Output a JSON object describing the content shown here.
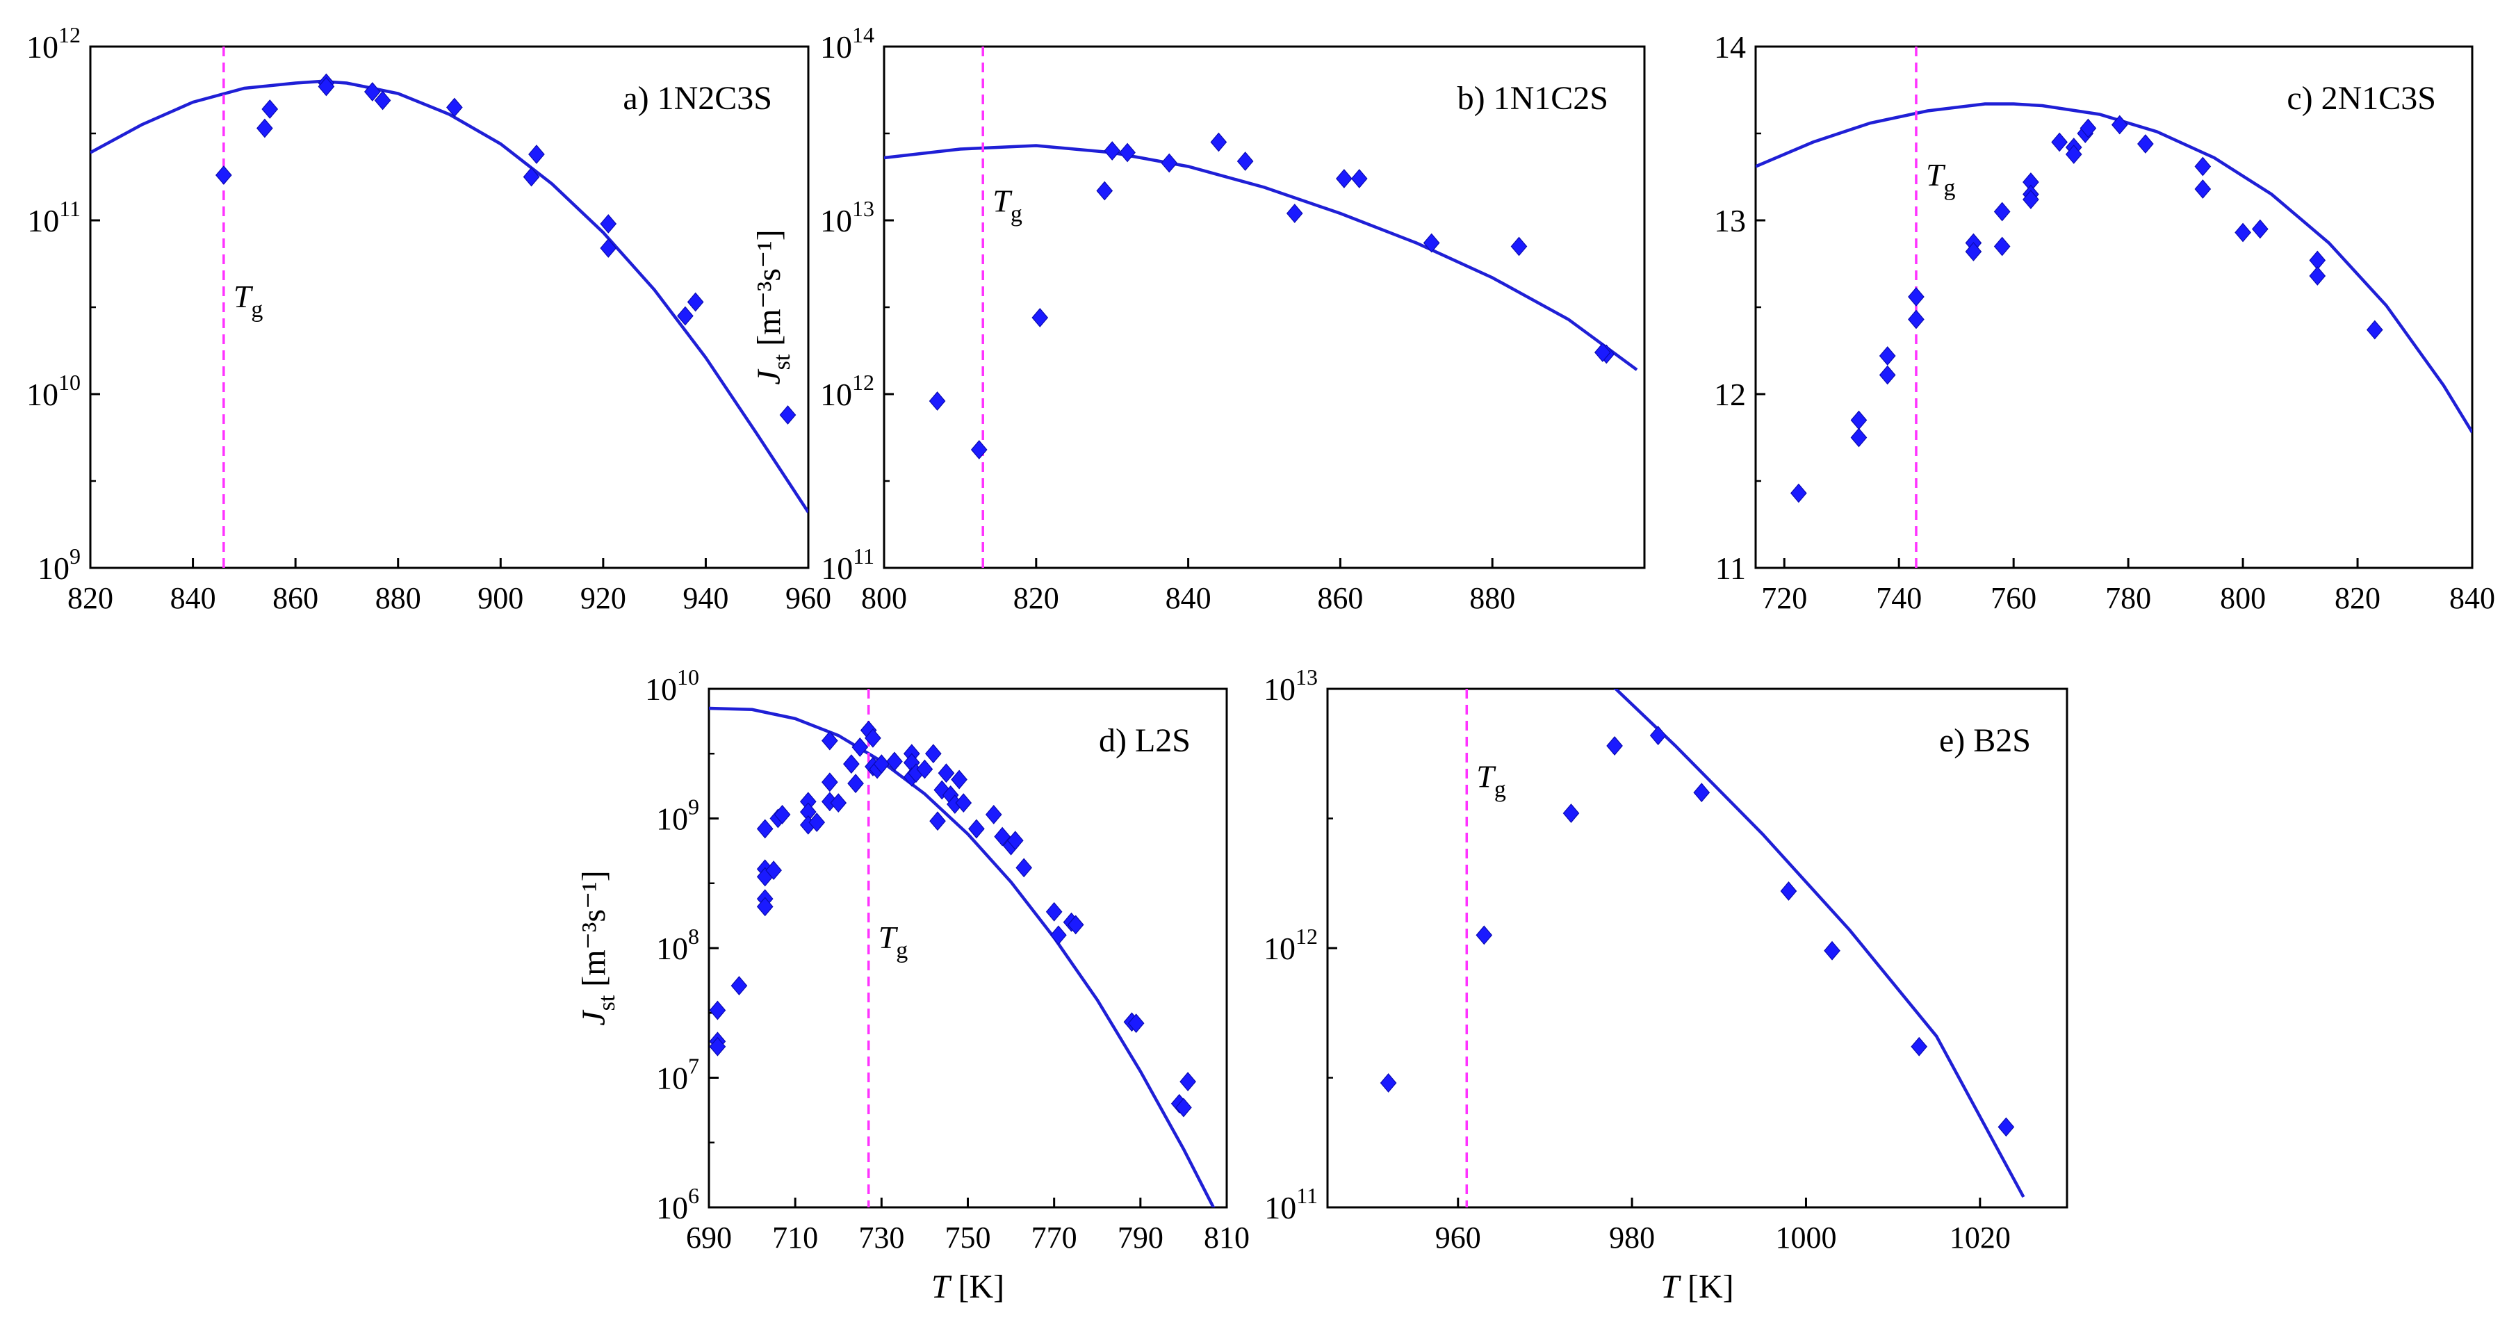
{
  "page": {
    "marker_color": "#1a1aff",
    "curve_color": "#1f1fd6",
    "tg_color": "#ff33ff"
  },
  "chart_data": [
    {
      "id": "a",
      "type": "scatter",
      "label": "a) 1N2C3S",
      "yscale": "log",
      "xlim": [
        820,
        960
      ],
      "xticks": [
        820,
        840,
        860,
        880,
        900,
        920,
        940,
        960
      ],
      "ylim": [
        9,
        12
      ],
      "ytick_labels": [
        {
          "v": 12,
          "base": "10",
          "exp": "12"
        },
        {
          "v": 11,
          "base": "10",
          "exp": "11"
        },
        {
          "v": 10,
          "base": "10",
          "exp": "10"
        },
        {
          "v": 9,
          "base": "10",
          "exp": "9"
        }
      ],
      "ylabel": "",
      "xlabel": "",
      "tg": {
        "x": 846,
        "label": "T",
        "sub": "g",
        "label_y": 10.5
      },
      "points": [
        [
          846,
          11.26
        ],
        [
          854,
          11.53
        ],
        [
          855,
          11.64
        ],
        [
          866,
          11.79
        ],
        [
          866,
          11.77
        ],
        [
          875,
          11.74
        ],
        [
          877,
          11.69
        ],
        [
          891,
          11.65
        ],
        [
          906,
          11.25
        ],
        [
          907,
          11.38
        ],
        [
          921,
          10.98
        ],
        [
          921,
          10.84
        ],
        [
          936,
          10.45
        ],
        [
          938,
          10.53
        ],
        [
          956,
          9.88
        ]
      ],
      "curve": [
        [
          820,
          11.39
        ],
        [
          830,
          11.55
        ],
        [
          840,
          11.68
        ],
        [
          850,
          11.76
        ],
        [
          860,
          11.79
        ],
        [
          865,
          11.8
        ],
        [
          870,
          11.79
        ],
        [
          880,
          11.73
        ],
        [
          890,
          11.61
        ],
        [
          900,
          11.44
        ],
        [
          910,
          11.21
        ],
        [
          920,
          10.93
        ],
        [
          930,
          10.6
        ],
        [
          940,
          10.21
        ],
        [
          950,
          9.77
        ],
        [
          960,
          9.32
        ]
      ]
    },
    {
      "id": "b",
      "type": "scatter",
      "label": "b) 1N1C2S",
      "yscale": "log",
      "xlim": [
        800,
        900
      ],
      "xticks": [
        800,
        820,
        840,
        860,
        880
      ],
      "ylim": [
        11,
        14
      ],
      "ytick_labels": [
        {
          "v": 14,
          "base": "10",
          "exp": "14"
        },
        {
          "v": 13,
          "base": "10",
          "exp": "13"
        },
        {
          "v": 12,
          "base": "10",
          "exp": "12"
        },
        {
          "v": 11,
          "base": "10",
          "exp": "11"
        }
      ],
      "ylabel": "J",
      "ylabel_sub": "st",
      "ylabel_unit": "[m⁻³s⁻¹]",
      "xlabel": "",
      "tg": {
        "x": 813,
        "label": "T",
        "sub": "g",
        "label_y": 13.05
      },
      "points": [
        [
          807,
          11.96
        ],
        [
          812.5,
          11.68
        ],
        [
          820.5,
          12.44
        ],
        [
          829,
          13.17
        ],
        [
          830,
          13.4
        ],
        [
          832,
          13.39
        ],
        [
          837.5,
          13.33
        ],
        [
          844,
          13.45
        ],
        [
          847.5,
          13.34
        ],
        [
          854,
          13.04
        ],
        [
          860.5,
          13.24
        ],
        [
          862.5,
          13.24
        ],
        [
          872,
          12.87
        ],
        [
          883.5,
          12.85
        ],
        [
          895,
          12.23
        ],
        [
          894.5,
          12.24
        ]
      ],
      "curve": [
        [
          800,
          13.36
        ],
        [
          810,
          13.41
        ],
        [
          820,
          13.43
        ],
        [
          830,
          13.39
        ],
        [
          840,
          13.31
        ],
        [
          850,
          13.19
        ],
        [
          860,
          13.04
        ],
        [
          870,
          12.87
        ],
        [
          880,
          12.67
        ],
        [
          890,
          12.43
        ],
        [
          899,
          12.14
        ]
      ]
    },
    {
      "id": "c",
      "type": "scatter",
      "label": "c) 2N1C3S",
      "yscale": "linear",
      "xlim": [
        715,
        840
      ],
      "xticks": [
        720,
        740,
        760,
        780,
        800,
        820,
        840
      ],
      "ylim": [
        11,
        14
      ],
      "ytick_labels": [
        {
          "v": 14,
          "base": "14",
          "exp": ""
        },
        {
          "v": 13,
          "base": "13",
          "exp": ""
        },
        {
          "v": 12,
          "base": "12",
          "exp": ""
        },
        {
          "v": 11,
          "base": "11",
          "exp": ""
        }
      ],
      "ylabel": "",
      "xlabel": "",
      "tg": {
        "x": 743,
        "label": "T",
        "sub": "g",
        "label_y": 13.2
      },
      "points": [
        [
          722.5,
          11.43
        ],
        [
          733,
          11.85
        ],
        [
          733,
          11.75
        ],
        [
          738,
          12.22
        ],
        [
          738,
          12.11
        ],
        [
          743,
          12.56
        ],
        [
          743,
          12.43
        ],
        [
          753,
          12.87
        ],
        [
          753,
          12.82
        ],
        [
          758,
          13.05
        ],
        [
          758,
          12.85
        ],
        [
          763,
          13.22
        ],
        [
          763,
          13.15
        ],
        [
          763,
          13.12
        ],
        [
          768,
          13.45
        ],
        [
          770.5,
          13.42
        ],
        [
          770.5,
          13.38
        ],
        [
          772.5,
          13.5
        ],
        [
          773,
          13.53
        ],
        [
          778.5,
          13.55
        ],
        [
          783,
          13.44
        ],
        [
          793,
          13.31
        ],
        [
          793,
          13.18
        ],
        [
          800,
          12.93
        ],
        [
          803,
          12.95
        ],
        [
          813,
          12.77
        ],
        [
          813,
          12.68
        ],
        [
          823,
          12.37
        ]
      ],
      "curve": [
        [
          715,
          13.31
        ],
        [
          725,
          13.45
        ],
        [
          735,
          13.56
        ],
        [
          745,
          13.63
        ],
        [
          755,
          13.67
        ],
        [
          760,
          13.67
        ],
        [
          765,
          13.66
        ],
        [
          775,
          13.61
        ],
        [
          785,
          13.51
        ],
        [
          795,
          13.36
        ],
        [
          805,
          13.15
        ],
        [
          815,
          12.87
        ],
        [
          825,
          12.51
        ],
        [
          835,
          12.05
        ],
        [
          840,
          11.78
        ]
      ]
    },
    {
      "id": "d",
      "type": "scatter",
      "label": "d) L2S",
      "yscale": "log",
      "xlim": [
        690,
        810
      ],
      "xticks": [
        690,
        710,
        730,
        750,
        770,
        790,
        810
      ],
      "ylim": [
        6,
        10
      ],
      "ytick_labels": [
        {
          "v": 10,
          "base": "10",
          "exp": "10"
        },
        {
          "v": 9,
          "base": "10",
          "exp": "9"
        },
        {
          "v": 8,
          "base": "10",
          "exp": "8"
        },
        {
          "v": 7,
          "base": "10",
          "exp": "7"
        },
        {
          "v": 6,
          "base": "10",
          "exp": "6"
        }
      ],
      "ylabel": "J",
      "ylabel_sub": "st",
      "ylabel_unit": "[m⁻³s⁻¹]",
      "xlabel": "T",
      "xlabel_unit": "[K]",
      "tg": {
        "x": 727,
        "label": "T",
        "sub": "g",
        "label_y": 8.0
      },
      "points": [
        [
          692,
          7.52
        ],
        [
          692,
          7.28
        ],
        [
          692,
          7.24
        ],
        [
          697,
          7.71
        ],
        [
          703,
          8.92
        ],
        [
          703,
          8.61
        ],
        [
          703,
          8.55
        ],
        [
          703,
          8.38
        ],
        [
          703,
          8.32
        ],
        [
          705,
          8.6
        ],
        [
          706,
          9.0
        ],
        [
          707,
          9.03
        ],
        [
          713,
          9.13
        ],
        [
          713,
          9.05
        ],
        [
          713,
          8.95
        ],
        [
          715,
          8.97
        ],
        [
          718,
          9.28
        ],
        [
          718,
          9.13
        ],
        [
          718,
          9.6
        ],
        [
          720,
          9.12
        ],
        [
          723,
          9.42
        ],
        [
          724,
          9.27
        ],
        [
          725,
          9.55
        ],
        [
          727,
          9.68
        ],
        [
          728,
          9.62
        ],
        [
          728,
          9.4
        ],
        [
          729,
          9.38
        ],
        [
          730,
          9.42
        ],
        [
          733,
          9.44
        ],
        [
          737,
          9.5
        ],
        [
          737,
          9.43
        ],
        [
          737,
          9.32
        ],
        [
          738,
          9.35
        ],
        [
          740,
          9.38
        ],
        [
          742,
          9.5
        ],
        [
          743,
          8.98
        ],
        [
          744,
          9.22
        ],
        [
          745,
          9.35
        ],
        [
          746,
          9.18
        ],
        [
          747,
          9.11
        ],
        [
          748,
          9.3
        ],
        [
          749,
          9.12
        ],
        [
          752,
          8.92
        ],
        [
          756,
          9.03
        ],
        [
          758,
          8.86
        ],
        [
          760,
          8.79
        ],
        [
          761,
          8.83
        ],
        [
          763,
          8.62
        ],
        [
          770,
          8.28
        ],
        [
          771,
          8.1
        ],
        [
          774,
          8.2
        ],
        [
          775,
          8.18
        ],
        [
          788,
          7.43
        ],
        [
          789,
          7.42
        ],
        [
          799,
          6.8
        ],
        [
          800,
          6.77
        ],
        [
          801,
          6.97
        ]
      ],
      "curve": [
        [
          690,
          9.85
        ],
        [
          700,
          9.84
        ],
        [
          710,
          9.77
        ],
        [
          720,
          9.64
        ],
        [
          730,
          9.44
        ],
        [
          740,
          9.19
        ],
        [
          750,
          8.88
        ],
        [
          760,
          8.51
        ],
        [
          770,
          8.08
        ],
        [
          780,
          7.6
        ],
        [
          790,
          7.05
        ],
        [
          800,
          6.45
        ],
        [
          810,
          5.8
        ]
      ]
    },
    {
      "id": "e",
      "type": "scatter",
      "label": "e) B2S",
      "yscale": "log",
      "xlim": [
        945,
        1030
      ],
      "xticks": [
        960,
        980,
        1000,
        1020
      ],
      "ylim": [
        11,
        13
      ],
      "ytick_labels": [
        {
          "v": 13,
          "base": "10",
          "exp": "13"
        },
        {
          "v": 12,
          "base": "10",
          "exp": "12"
        },
        {
          "v": 11,
          "base": "10",
          "exp": "11"
        }
      ],
      "ylabel": "",
      "xlabel": "T",
      "xlabel_unit": "[K]",
      "tg": {
        "x": 961,
        "label": "T",
        "sub": "g",
        "label_y": 12.62
      },
      "points": [
        [
          952,
          11.48
        ],
        [
          963,
          12.05
        ],
        [
          973,
          12.52
        ],
        [
          978,
          12.78
        ],
        [
          983,
          12.82
        ],
        [
          988,
          12.6
        ],
        [
          998,
          12.22
        ],
        [
          1003,
          11.99
        ],
        [
          1013,
          11.62
        ],
        [
          1023,
          11.31
        ]
      ],
      "curve": [
        [
          977.5,
          13.02
        ],
        [
          985,
          12.78
        ],
        [
          995,
          12.44
        ],
        [
          1005,
          12.07
        ],
        [
          1015,
          11.66
        ],
        [
          1025,
          11.04
        ]
      ]
    }
  ]
}
